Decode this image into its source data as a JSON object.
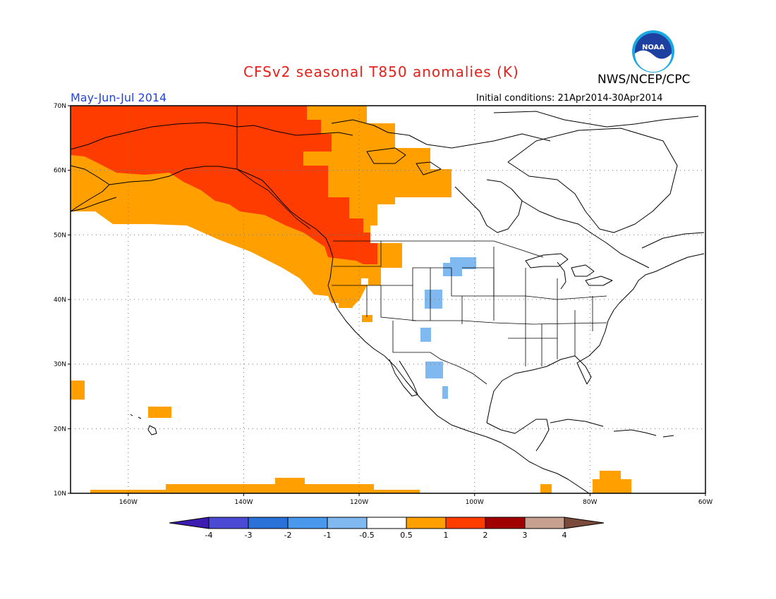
{
  "title": "CFSv2 seasonal T850 anomalies (K)",
  "agency": "NWS/NCEP/CPC",
  "logo_text": "NOAA",
  "period": "May-Jun-Jul 2014",
  "initial_conditions": "Initial conditions: 21Apr2014-30Apr2014",
  "lat_labels": [
    "70N",
    "60N",
    "50N",
    "40N",
    "30N",
    "20N",
    "10N"
  ],
  "lat_values": [
    70,
    60,
    50,
    40,
    30,
    20,
    10
  ],
  "lon_labels": [
    "160W",
    "140W",
    "120W",
    "100W",
    "80W",
    "60W"
  ],
  "lon_values": [
    -160,
    -140,
    -120,
    -100,
    -80,
    -60
  ],
  "map_extent": {
    "lon_min": -170,
    "lon_max": -60,
    "lat_min": 10,
    "lat_max": 70
  },
  "colorbar": {
    "labels": [
      "-4",
      "-3",
      "-2",
      "-1",
      "-0.5",
      "0.5",
      "1",
      "2",
      "3",
      "4"
    ],
    "colors": [
      "#3c1bb0",
      "#4a4ad4",
      "#2a72d8",
      "#4a98ee",
      "#80b8f0",
      "#ffffff",
      "#ffa000",
      "#ff3c00",
      "#a00000",
      "#c8a090",
      "#7a4a3a"
    ]
  },
  "anomaly_colors": {
    "warm_1": "#ffa000",
    "warm_2": "#ff3c00",
    "cool_1": "#80b8f0"
  }
}
